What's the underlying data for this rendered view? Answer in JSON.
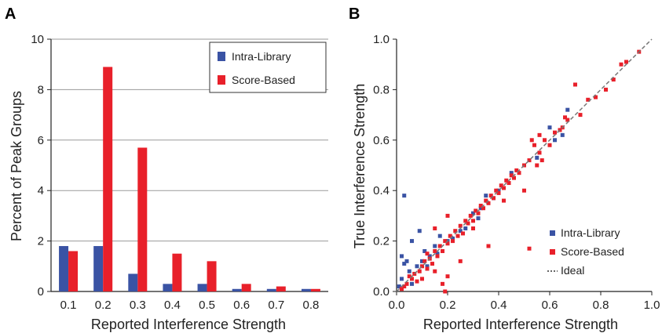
{
  "chart_data": [
    {
      "panel": "A",
      "type": "bar",
      "xlabel": "Reported Interference Strength",
      "ylabel": "Percent of Peak Groups",
      "categories": [
        "0.1",
        "0.2",
        "0.3",
        "0.4",
        "0.5",
        "0.6",
        "0.7",
        "0.8"
      ],
      "series": [
        {
          "name": "Intra-Library",
          "color": "#3a53a4",
          "values": [
            1.8,
            1.8,
            0.7,
            0.3,
            0.3,
            0.1,
            0.1,
            0.1
          ]
        },
        {
          "name": "Score-Based",
          "color": "#e8202a",
          "values": [
            1.6,
            8.9,
            5.7,
            1.5,
            1.2,
            0.3,
            0.2,
            0.1
          ]
        }
      ],
      "ylim": [
        0,
        10
      ],
      "yticks": [
        "0",
        "2",
        "4",
        "6",
        "8",
        "10"
      ],
      "grid": "horizontal",
      "legend": "top-right"
    },
    {
      "panel": "B",
      "type": "scatter",
      "xlabel": "Reported Interference Strength",
      "ylabel": "True Interference Strength",
      "xlim": [
        0,
        1
      ],
      "ylim": [
        0,
        1
      ],
      "xticks": [
        "0.0",
        "0.2",
        "0.4",
        "0.6",
        "0.8",
        "1.0"
      ],
      "yticks": [
        "0.0",
        "0.2",
        "0.4",
        "0.6",
        "0.8",
        "1.0"
      ],
      "series": [
        {
          "name": "Intra-Library",
          "color": "#3a53a4",
          "points": [
            [
              0.01,
              0.02
            ],
            [
              0.02,
              0.05
            ],
            [
              0.02,
              0.14
            ],
            [
              0.03,
              0.11
            ],
            [
              0.03,
              0.38
            ],
            [
              0.04,
              0.12
            ],
            [
              0.05,
              0.08
            ],
            [
              0.06,
              0.2
            ],
            [
              0.06,
              0.03
            ],
            [
              0.08,
              0.1
            ],
            [
              0.09,
              0.24
            ],
            [
              0.1,
              0.12
            ],
            [
              0.11,
              0.16
            ],
            [
              0.12,
              0.1
            ],
            [
              0.13,
              0.14
            ],
            [
              0.15,
              0.18
            ],
            [
              0.16,
              0.15
            ],
            [
              0.17,
              0.22
            ],
            [
              0.2,
              0.2
            ],
            [
              0.22,
              0.21
            ],
            [
              0.25,
              0.24
            ],
            [
              0.27,
              0.25
            ],
            [
              0.3,
              0.31
            ],
            [
              0.32,
              0.29
            ],
            [
              0.33,
              0.33
            ],
            [
              0.35,
              0.38
            ],
            [
              0.38,
              0.37
            ],
            [
              0.4,
              0.4
            ],
            [
              0.45,
              0.47
            ],
            [
              0.5,
              0.5
            ],
            [
              0.55,
              0.53
            ],
            [
              0.6,
              0.65
            ],
            [
              0.62,
              0.6
            ],
            [
              0.65,
              0.62
            ],
            [
              0.67,
              0.72
            ]
          ]
        },
        {
          "name": "Score-Based",
          "color": "#e8202a",
          "points": [
            [
              0.02,
              0.01
            ],
            [
              0.03,
              0.02
            ],
            [
              0.04,
              0.03
            ],
            [
              0.05,
              0.06
            ],
            [
              0.06,
              0.05
            ],
            [
              0.07,
              0.07
            ],
            [
              0.08,
              0.04
            ],
            [
              0.09,
              0.08
            ],
            [
              0.1,
              0.1
            ],
            [
              0.1,
              0.05
            ],
            [
              0.11,
              0.12
            ],
            [
              0.12,
              0.09
            ],
            [
              0.12,
              0.15
            ],
            [
              0.13,
              0.13
            ],
            [
              0.14,
              0.11
            ],
            [
              0.15,
              0.16
            ],
            [
              0.15,
              0.08
            ],
            [
              0.16,
              0.14
            ],
            [
              0.17,
              0.18
            ],
            [
              0.18,
              0.16
            ],
            [
              0.18,
              0.03
            ],
            [
              0.19,
              0.2
            ],
            [
              0.2,
              0.19
            ],
            [
              0.2,
              0.06
            ],
            [
              0.21,
              0.22
            ],
            [
              0.22,
              0.2
            ],
            [
              0.23,
              0.24
            ],
            [
              0.24,
              0.22
            ],
            [
              0.25,
              0.26
            ],
            [
              0.26,
              0.23
            ],
            [
              0.27,
              0.28
            ],
            [
              0.28,
              0.27
            ],
            [
              0.29,
              0.3
            ],
            [
              0.3,
              0.28
            ],
            [
              0.31,
              0.32
            ],
            [
              0.32,
              0.31
            ],
            [
              0.33,
              0.34
            ],
            [
              0.34,
              0.33
            ],
            [
              0.35,
              0.36
            ],
            [
              0.36,
              0.35
            ],
            [
              0.37,
              0.38
            ],
            [
              0.38,
              0.37
            ],
            [
              0.39,
              0.4
            ],
            [
              0.4,
              0.39
            ],
            [
              0.41,
              0.42
            ],
            [
              0.42,
              0.41
            ],
            [
              0.43,
              0.44
            ],
            [
              0.44,
              0.43
            ],
            [
              0.45,
              0.46
            ],
            [
              0.46,
              0.45
            ],
            [
              0.47,
              0.48
            ],
            [
              0.48,
              0.47
            ],
            [
              0.5,
              0.5
            ],
            [
              0.52,
              0.52
            ],
            [
              0.53,
              0.6
            ],
            [
              0.54,
              0.58
            ],
            [
              0.55,
              0.5
            ],
            [
              0.56,
              0.55
            ],
            [
              0.57,
              0.52
            ],
            [
              0.58,
              0.6
            ],
            [
              0.6,
              0.58
            ],
            [
              0.62,
              0.63
            ],
            [
              0.64,
              0.64
            ],
            [
              0.65,
              0.65
            ],
            [
              0.66,
              0.69
            ],
            [
              0.67,
              0.68
            ],
            [
              0.7,
              0.82
            ],
            [
              0.72,
              0.7
            ],
            [
              0.75,
              0.76
            ],
            [
              0.78,
              0.77
            ],
            [
              0.82,
              0.8
            ],
            [
              0.85,
              0.84
            ],
            [
              0.88,
              0.9
            ],
            [
              0.9,
              0.91
            ],
            [
              0.95,
              0.95
            ],
            [
              0.36,
              0.18
            ],
            [
              0.2,
              0.3
            ],
            [
              0.15,
              0.25
            ],
            [
              0.19,
              0.0
            ],
            [
              0.3,
              0.25
            ],
            [
              0.5,
              0.4
            ],
            [
              0.52,
              0.17
            ],
            [
              0.25,
              0.12
            ],
            [
              0.42,
              0.36
            ],
            [
              0.56,
              0.62
            ]
          ]
        }
      ],
      "ideal_line": {
        "name": "Ideal",
        "color": "#777777",
        "from": [
          0,
          0
        ],
        "to": [
          1,
          1
        ]
      },
      "legend": "bottom-right"
    }
  ],
  "panel_a_letter": "A",
  "panel_b_letter": "B"
}
